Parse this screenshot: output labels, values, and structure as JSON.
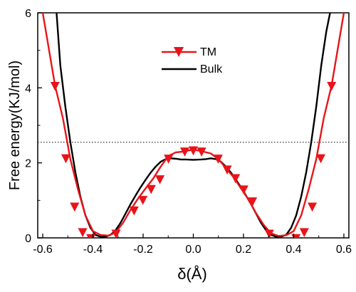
{
  "chart_data": {
    "type": "line",
    "xlabel": "δ(Å)",
    "ylabel": "Free energy(KJ/mol)",
    "xlim": [
      -0.62,
      0.62
    ],
    "ylim": [
      0,
      6
    ],
    "x_ticks": [
      -0.6,
      -0.4,
      -0.2,
      0.0,
      0.2,
      0.4,
      0.6
    ],
    "x_tick_labels": [
      "-0.6",
      "-0.4",
      "-0.2",
      "0.0",
      "0.2",
      "0.4",
      "0.6"
    ],
    "y_ticks": [
      0,
      2,
      4,
      6
    ],
    "y_tick_labels": [
      "0",
      "2",
      "4",
      "6"
    ],
    "reference_line": {
      "y": 2.55,
      "style": "dotted"
    },
    "legend_position": "top-center",
    "grid": false,
    "series": [
      {
        "name": "TM",
        "color": "#e8141a",
        "marker": "down-triangle",
        "x": [
          -0.6,
          -0.551,
          -0.52,
          -0.49,
          -0.46,
          -0.43,
          -0.4,
          -0.37,
          -0.34,
          -0.31,
          -0.28,
          -0.25,
          -0.22,
          -0.19,
          -0.16,
          -0.13,
          -0.1,
          -0.07,
          -0.04,
          -0.02,
          0.0,
          0.02,
          0.04,
          0.07,
          0.1,
          0.13,
          0.16,
          0.19,
          0.22,
          0.25,
          0.28,
          0.31,
          0.34,
          0.37,
          0.4,
          0.43,
          0.46,
          0.49,
          0.52,
          0.551,
          0.6
        ],
        "y": [
          6.0,
          4.06,
          3.2,
          2.1,
          1.3,
          0.6,
          0.18,
          0.08,
          0.06,
          0.14,
          0.4,
          0.75,
          1.05,
          1.32,
          1.58,
          1.9,
          2.18,
          2.28,
          2.3,
          2.33,
          2.35,
          2.33,
          2.3,
          2.25,
          2.1,
          1.86,
          1.62,
          1.32,
          1.02,
          0.66,
          0.35,
          0.12,
          0.05,
          0.07,
          0.18,
          0.6,
          1.3,
          2.1,
          3.2,
          4.06,
          6.0
        ],
        "marker_x": [
          -0.551,
          -0.508,
          -0.473,
          -0.441,
          -0.408,
          -0.308,
          -0.236,
          -0.201,
          -0.168,
          -0.133,
          -0.099,
          -0.034,
          0.0,
          0.033,
          0.099,
          0.135,
          0.168,
          0.201,
          0.236,
          0.303,
          0.409,
          0.442,
          0.474,
          0.508,
          0.551
        ],
        "marker_y": [
          4.06,
          2.13,
          0.84,
          0.16,
          0.0,
          0.12,
          0.74,
          1.02,
          1.31,
          1.57,
          2.12,
          2.31,
          2.34,
          2.31,
          2.12,
          1.83,
          1.6,
          1.3,
          0.98,
          0.12,
          0.0,
          0.16,
          0.84,
          2.13,
          4.06
        ]
      },
      {
        "name": "Bulk",
        "color": "#000000",
        "marker": "none",
        "x": [
          -0.545,
          -0.53,
          -0.51,
          -0.49,
          -0.47,
          -0.45,
          -0.43,
          -0.41,
          -0.39,
          -0.37,
          -0.35,
          -0.33,
          -0.31,
          -0.29,
          -0.27,
          -0.25,
          -0.23,
          -0.21,
          -0.19,
          -0.17,
          -0.15,
          -0.13,
          -0.11,
          -0.09,
          -0.07,
          -0.05,
          -0.03,
          0.0,
          0.03,
          0.05,
          0.07,
          0.09,
          0.11,
          0.13,
          0.15,
          0.17,
          0.19,
          0.21,
          0.23,
          0.25,
          0.27,
          0.29,
          0.31,
          0.33,
          0.35,
          0.37,
          0.39,
          0.41,
          0.43,
          0.45,
          0.47,
          0.49,
          0.51,
          0.53,
          0.545
        ],
        "y": [
          6.0,
          4.6,
          3.5,
          2.55,
          1.75,
          1.1,
          0.6,
          0.27,
          0.08,
          0.03,
          0.03,
          0.08,
          0.2,
          0.4,
          0.65,
          0.9,
          1.13,
          1.35,
          1.55,
          1.74,
          1.9,
          2.03,
          2.1,
          2.12,
          2.11,
          2.09,
          2.09,
          2.08,
          2.09,
          2.1,
          2.12,
          2.1,
          2.03,
          1.9,
          1.74,
          1.55,
          1.35,
          1.13,
          0.9,
          0.65,
          0.4,
          0.2,
          0.08,
          0.03,
          0.03,
          0.08,
          0.27,
          0.6,
          1.1,
          1.75,
          2.55,
          3.5,
          4.6,
          5.5,
          6.0
        ]
      }
    ]
  }
}
